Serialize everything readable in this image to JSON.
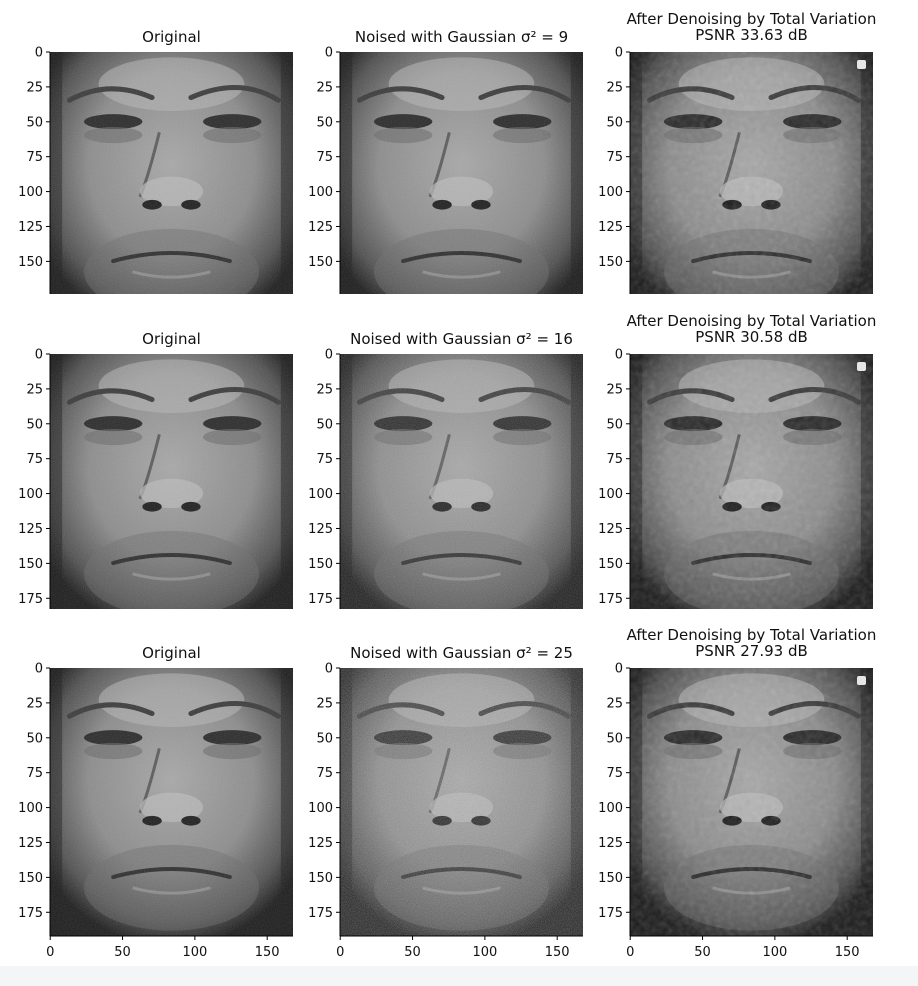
{
  "chart_data": {
    "type": "image_grid",
    "y_ticks": [
      0,
      25,
      50,
      75,
      100,
      125,
      150,
      175
    ],
    "x_ticks": [
      0,
      50,
      100,
      150
    ],
    "image_size": {
      "width": 168,
      "height": 192
    },
    "rows": [
      {
        "noise_variance": 9,
        "psnr_db": 33.63,
        "panels": [
          {
            "kind": "original",
            "title": "Original",
            "title_line2": ""
          },
          {
            "kind": "noised",
            "title": "Noised with Gaussian σ² = 9",
            "title_line2": ""
          },
          {
            "kind": "denoised",
            "title": "After Denoising by Total Variation",
            "title_line2": "PSNR 33.63 dB"
          }
        ]
      },
      {
        "noise_variance": 16,
        "psnr_db": 30.58,
        "panels": [
          {
            "kind": "original",
            "title": "Original",
            "title_line2": ""
          },
          {
            "kind": "noised",
            "title": "Noised with Gaussian σ² = 16",
            "title_line2": ""
          },
          {
            "kind": "denoised",
            "title": "After Denoising by Total Variation",
            "title_line2": "PSNR 30.58 dB"
          }
        ]
      },
      {
        "noise_variance": 25,
        "psnr_db": 27.93,
        "panels": [
          {
            "kind": "original",
            "title": "Original",
            "title_line2": ""
          },
          {
            "kind": "noised",
            "title": "Noised with Gaussian σ² = 25",
            "title_line2": ""
          },
          {
            "kind": "denoised",
            "title": "After Denoising by Total Variation",
            "title_line2": "PSNR 27.93 dB"
          }
        ]
      }
    ]
  }
}
